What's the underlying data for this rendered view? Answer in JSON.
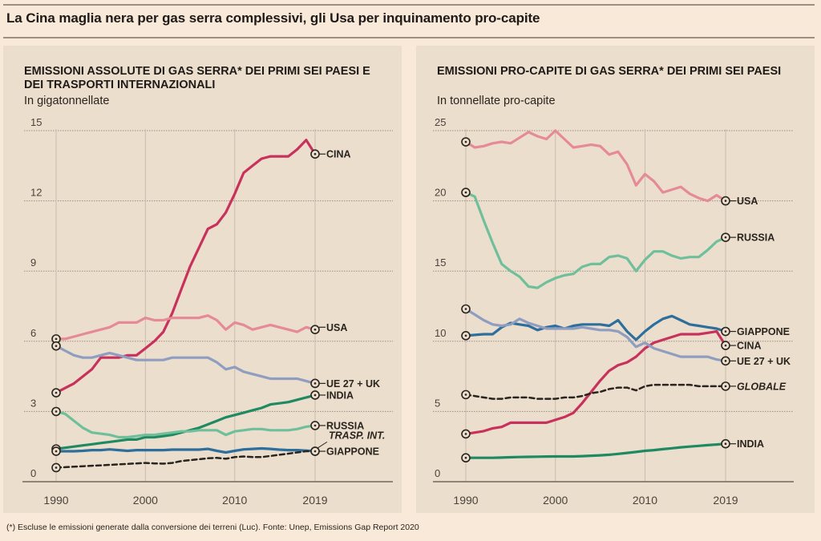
{
  "headline": "La Cina maglia nera per gas serra complessivi, gli Usa per inquinamento pro-capite",
  "footnote": "(*) Escluse le emissioni generate dalla conversione dei terreni (Luc). Fonte: Unep, Emissions Gap Report 2020",
  "chart_data": [
    {
      "type": "line",
      "title": "EMISSIONI ASSOLUTE DI GAS SERRA* DEI PRIMI SEI PAESI E DEI TRASPORTI INTERNAZIONALI",
      "subtitle": "In gigatonnellate",
      "xlabel": "",
      "ylabel": "",
      "ylim": [
        0,
        15
      ],
      "xlim": [
        1990,
        2019
      ],
      "yticks": [
        0,
        3,
        6,
        9,
        12,
        15
      ],
      "xticks": [
        1990,
        2000,
        2010,
        2019
      ],
      "grid": true,
      "x": [
        1990,
        1991,
        1992,
        1993,
        1994,
        1995,
        1996,
        1997,
        1998,
        1999,
        2000,
        2001,
        2002,
        2003,
        2004,
        2005,
        2006,
        2007,
        2008,
        2009,
        2010,
        2011,
        2012,
        2013,
        2014,
        2015,
        2016,
        2017,
        2018,
        2019
      ],
      "series": [
        {
          "name": "CINA",
          "color": "#c7315b",
          "dashed": false,
          "values": [
            3.8,
            4.0,
            4.2,
            4.5,
            4.8,
            5.3,
            5.3,
            5.3,
            5.4,
            5.4,
            5.7,
            6.0,
            6.4,
            7.2,
            8.2,
            9.2,
            10.0,
            10.8,
            11.0,
            11.5,
            12.3,
            13.2,
            13.5,
            13.8,
            13.9,
            13.9,
            13.9,
            14.2,
            14.6,
            14.0
          ]
        },
        {
          "name": "USA",
          "color": "#e58a97",
          "dashed": false,
          "values": [
            6.1,
            6.1,
            6.2,
            6.3,
            6.4,
            6.5,
            6.6,
            6.8,
            6.8,
            6.8,
            7.0,
            6.9,
            6.9,
            7.0,
            7.0,
            7.0,
            7.0,
            7.1,
            6.9,
            6.5,
            6.8,
            6.7,
            6.5,
            6.6,
            6.7,
            6.6,
            6.5,
            6.4,
            6.6,
            6.5
          ]
        },
        {
          "name": "UE 27 + UK",
          "color": "#8e9dc0",
          "dashed": false,
          "values": [
            5.8,
            5.6,
            5.4,
            5.3,
            5.3,
            5.4,
            5.5,
            5.4,
            5.3,
            5.2,
            5.2,
            5.2,
            5.2,
            5.3,
            5.3,
            5.3,
            5.3,
            5.3,
            5.1,
            4.8,
            4.9,
            4.7,
            4.6,
            4.5,
            4.4,
            4.4,
            4.4,
            4.4,
            4.3,
            4.2
          ]
        },
        {
          "name": "INDIA",
          "color": "#1f8a62",
          "dashed": false,
          "values": [
            1.4,
            1.45,
            1.5,
            1.55,
            1.6,
            1.65,
            1.7,
            1.75,
            1.8,
            1.8,
            1.9,
            1.9,
            1.95,
            2.0,
            2.1,
            2.2,
            2.3,
            2.45,
            2.6,
            2.75,
            2.85,
            2.95,
            3.05,
            3.15,
            3.3,
            3.35,
            3.4,
            3.5,
            3.6,
            3.7
          ]
        },
        {
          "name": "RUSSIA",
          "color": "#6fbf9b",
          "dashed": false,
          "values": [
            3.0,
            2.9,
            2.6,
            2.3,
            2.1,
            2.05,
            2.0,
            1.9,
            1.9,
            1.95,
            2.0,
            2.0,
            2.05,
            2.1,
            2.15,
            2.15,
            2.2,
            2.2,
            2.2,
            2.0,
            2.15,
            2.2,
            2.25,
            2.25,
            2.2,
            2.2,
            2.2,
            2.25,
            2.35,
            2.4
          ]
        },
        {
          "name": "GIAPPONE",
          "color": "#2d6f9c",
          "dashed": false,
          "values": [
            1.3,
            1.3,
            1.3,
            1.32,
            1.35,
            1.35,
            1.38,
            1.35,
            1.32,
            1.35,
            1.35,
            1.35,
            1.35,
            1.37,
            1.37,
            1.37,
            1.37,
            1.4,
            1.32,
            1.25,
            1.32,
            1.38,
            1.4,
            1.42,
            1.4,
            1.37,
            1.35,
            1.35,
            1.33,
            1.3
          ]
        },
        {
          "name": "TRASP. INT.",
          "color": "#2a241f",
          "dashed": true,
          "values": [
            0.6,
            0.62,
            0.64,
            0.66,
            0.68,
            0.7,
            0.72,
            0.74,
            0.76,
            0.78,
            0.8,
            0.78,
            0.77,
            0.8,
            0.88,
            0.92,
            0.96,
            1.0,
            1.02,
            0.98,
            1.05,
            1.08,
            1.05,
            1.05,
            1.1,
            1.15,
            1.2,
            1.25,
            1.3,
            1.3
          ]
        }
      ]
    },
    {
      "type": "line",
      "title": "EMISSIONI PRO-CAPITE DI GAS SERRA* DEI PRIMI SEI PAESI",
      "subtitle": "In tonnellate pro-capite",
      "xlabel": "",
      "ylabel": "",
      "ylim": [
        0,
        25
      ],
      "xlim": [
        1990,
        2019
      ],
      "yticks": [
        0,
        5,
        10,
        15,
        20,
        25
      ],
      "xticks": [
        1990,
        2000,
        2010,
        2019
      ],
      "grid": true,
      "x": [
        1990,
        1991,
        1992,
        1993,
        1994,
        1995,
        1996,
        1997,
        1998,
        1999,
        2000,
        2001,
        2002,
        2003,
        2004,
        2005,
        2006,
        2007,
        2008,
        2009,
        2010,
        2011,
        2012,
        2013,
        2014,
        2015,
        2016,
        2017,
        2018,
        2019
      ],
      "series": [
        {
          "name": "USA",
          "color": "#e58a97",
          "dashed": false,
          "values": [
            24.2,
            23.8,
            23.9,
            24.1,
            24.2,
            24.1,
            24.5,
            24.9,
            24.6,
            24.4,
            25.0,
            24.4,
            23.8,
            23.9,
            24.0,
            23.9,
            23.3,
            23.5,
            22.6,
            21.1,
            21.9,
            21.4,
            20.6,
            20.8,
            21.0,
            20.5,
            20.2,
            20.0,
            20.4,
            20.0
          ]
        },
        {
          "name": "RUSSIA",
          "color": "#6fbf9b",
          "dashed": false,
          "values": [
            20.6,
            20.3,
            18.6,
            17.0,
            15.5,
            15.0,
            14.6,
            13.9,
            13.8,
            14.2,
            14.5,
            14.7,
            14.8,
            15.3,
            15.5,
            15.5,
            16.0,
            16.1,
            15.9,
            15.0,
            15.8,
            16.4,
            16.4,
            16.1,
            15.9,
            16.0,
            16.0,
            16.5,
            17.1,
            17.4
          ]
        },
        {
          "name": "GIAPPONE",
          "color": "#2d6f9c",
          "dashed": false,
          "values": [
            10.4,
            10.45,
            10.5,
            10.5,
            11.0,
            11.3,
            11.2,
            11.1,
            10.8,
            11.0,
            11.1,
            10.9,
            11.1,
            11.2,
            11.2,
            11.2,
            11.1,
            11.5,
            10.7,
            10.1,
            10.7,
            11.2,
            11.6,
            11.8,
            11.5,
            11.2,
            11.1,
            11.0,
            10.9,
            10.7
          ]
        },
        {
          "name": "CINA",
          "color": "#c7315b",
          "dashed": false,
          "values": [
            3.4,
            3.5,
            3.6,
            3.8,
            3.9,
            4.2,
            4.2,
            4.2,
            4.2,
            4.2,
            4.4,
            4.6,
            4.9,
            5.6,
            6.4,
            7.2,
            7.9,
            8.3,
            8.5,
            8.9,
            9.5,
            9.9,
            10.1,
            10.3,
            10.5,
            10.5,
            10.5,
            10.6,
            10.7,
            9.7
          ]
        },
        {
          "name": "UE 27 + UK",
          "color": "#8e9dc0",
          "dashed": false,
          "values": [
            12.3,
            11.9,
            11.5,
            11.2,
            11.1,
            11.2,
            11.6,
            11.3,
            11.1,
            10.9,
            10.9,
            10.9,
            10.9,
            11.0,
            10.9,
            10.8,
            10.8,
            10.7,
            10.3,
            9.6,
            9.9,
            9.5,
            9.3,
            9.1,
            8.9,
            8.9,
            8.9,
            8.9,
            8.7,
            8.6
          ]
        },
        {
          "name": "GLOBALE",
          "color": "#2a241f",
          "dashed": true,
          "values": [
            6.2,
            6.1,
            6.0,
            5.9,
            5.9,
            6.0,
            6.0,
            6.0,
            5.9,
            5.9,
            5.9,
            6.0,
            6.0,
            6.1,
            6.3,
            6.4,
            6.6,
            6.7,
            6.7,
            6.5,
            6.8,
            6.9,
            6.9,
            6.9,
            6.9,
            6.9,
            6.8,
            6.8,
            6.8,
            6.8
          ]
        },
        {
          "name": "INDIA",
          "color": "#1f8a62",
          "dashed": false,
          "values": [
            1.7,
            1.7,
            1.7,
            1.7,
            1.72,
            1.74,
            1.76,
            1.77,
            1.78,
            1.79,
            1.8,
            1.8,
            1.8,
            1.82,
            1.85,
            1.88,
            1.92,
            1.98,
            2.05,
            2.12,
            2.2,
            2.25,
            2.32,
            2.38,
            2.45,
            2.5,
            2.55,
            2.6,
            2.65,
            2.7
          ]
        }
      ]
    }
  ]
}
